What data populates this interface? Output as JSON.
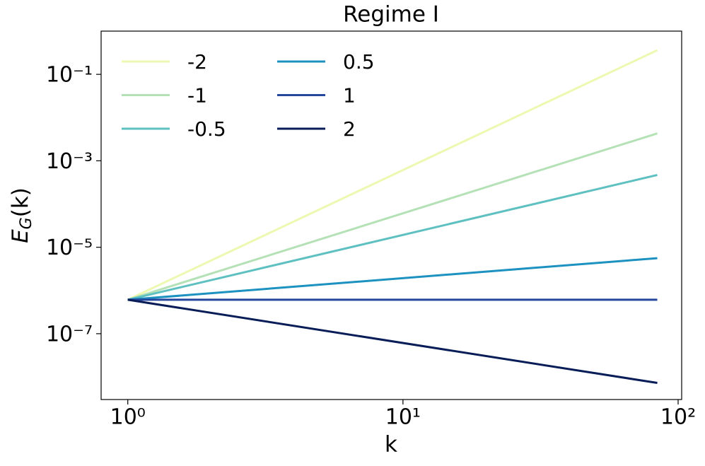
{
  "chart_data": {
    "type": "line",
    "title": "Regime I",
    "xlabel": "k",
    "ylabel": "E_G(k)",
    "x": [
      1,
      84
    ],
    "series": [
      {
        "name": "-2",
        "color": "#edf8b1",
        "values": [
          6.1e-07,
          0.3615
        ]
      },
      {
        "name": "-1",
        "color": "#b5e1b6",
        "values": [
          6.1e-07,
          0.0043
        ]
      },
      {
        "name": "-0.5",
        "color": "#5ec0c0",
        "values": [
          6.1e-07,
          0.00047
        ]
      },
      {
        "name": "0.5",
        "color": "#1d91c0",
        "values": [
          6.1e-07,
          5.59e-06
        ]
      },
      {
        "name": "1",
        "color": "#24469c",
        "values": [
          6.1e-07,
          6.1e-07
        ]
      },
      {
        "name": "2",
        "color": "#081d58",
        "values": [
          6.1e-07,
          7.26e-09
        ]
      }
    ],
    "xscale": "log",
    "yscale": "log",
    "xlim": [
      0.8,
      103
    ],
    "ylim": [
      3e-09,
      1
    ],
    "xticks": [
      {
        "value": 1,
        "label": "10⁰"
      },
      {
        "value": 10,
        "label": "10¹"
      },
      {
        "value": 100,
        "label": "10²"
      }
    ],
    "yticks": [
      {
        "value": 0.1,
        "label": "10⁻¹"
      },
      {
        "value": 0.001,
        "label": "10⁻³"
      },
      {
        "value": 1e-05,
        "label": "10⁻⁵"
      },
      {
        "value": 1e-07,
        "label": "10⁻⁷"
      }
    ],
    "legend": "upper left",
    "legend_columns": 2
  }
}
